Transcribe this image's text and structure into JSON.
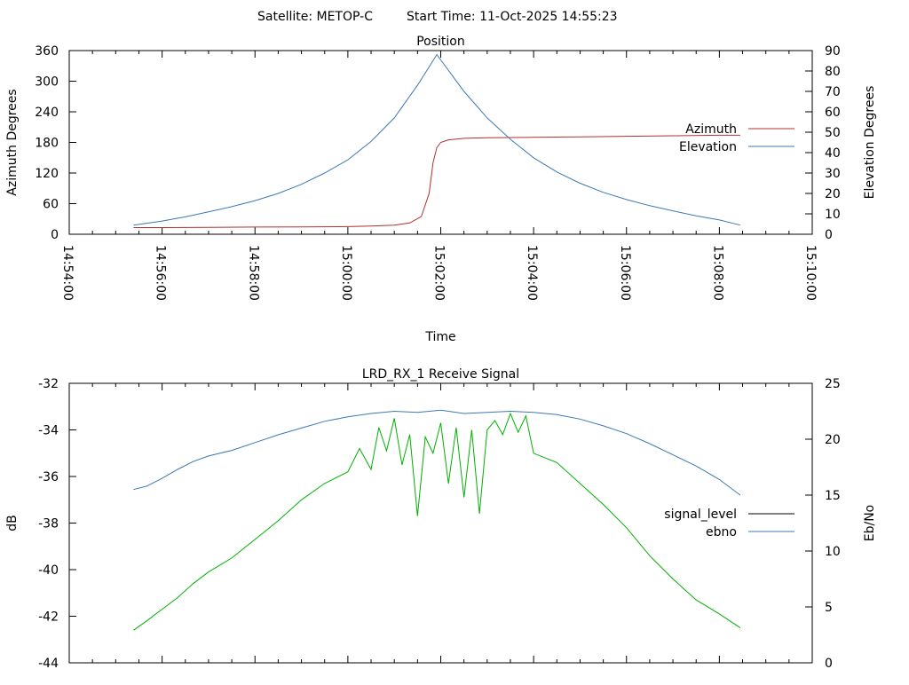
{
  "header": {
    "satellite_label": "Satellite: METOP-C",
    "start_time_label": "Start Time: 11-Oct-2025 14:55:23"
  },
  "chart_data": [
    {
      "type": "line",
      "title": "Position",
      "xlabel": "Time",
      "ylabel": "Azimuth Degrees",
      "y2label": "Elevation Degrees",
      "xlim": [
        "14:54:00",
        "15:10:00"
      ],
      "ylim": [
        0,
        360
      ],
      "y2lim": [
        0,
        90
      ],
      "x_ticks": [
        "14:54:00",
        "14:56:00",
        "14:58:00",
        "15:00:00",
        "15:02:00",
        "15:04:00",
        "15:06:00",
        "15:08:00",
        "15:10:00"
      ],
      "y_ticks": [
        "0",
        "60",
        "120",
        "180",
        "240",
        "300",
        "360"
      ],
      "y2_ticks": [
        "0",
        "10",
        "20",
        "30",
        "40",
        "50",
        "60",
        "70",
        "80",
        "90"
      ],
      "legend_position": "right",
      "series": [
        {
          "name": "Azimuth",
          "axis": "y",
          "color": "#b03030",
          "x": [
            "14:55:23",
            "14:56:00",
            "14:57:00",
            "14:58:00",
            "14:59:00",
            "15:00:00",
            "15:00:30",
            "15:01:00",
            "15:01:20",
            "15:01:35",
            "15:01:45",
            "15:01:50",
            "15:01:55",
            "15:02:00",
            "15:02:10",
            "15:02:30",
            "15:03:00",
            "15:04:00",
            "15:05:00",
            "15:06:00",
            "15:07:00",
            "15:08:00",
            "15:08:27"
          ],
          "values": [
            13,
            13,
            13.5,
            14,
            14.5,
            15,
            16,
            18,
            22,
            35,
            80,
            140,
            170,
            180,
            185,
            188,
            189,
            190,
            191,
            192,
            193,
            194,
            194
          ]
        },
        {
          "name": "Elevation",
          "axis": "y2",
          "color": "#3c78b4",
          "x": [
            "14:55:23",
            "14:56:00",
            "14:56:30",
            "14:57:00",
            "14:57:30",
            "14:58:00",
            "14:58:30",
            "14:59:00",
            "14:59:30",
            "15:00:00",
            "15:00:30",
            "15:01:00",
            "15:01:30",
            "15:01:55",
            "15:02:30",
            "15:03:00",
            "15:03:30",
            "15:04:00",
            "15:04:30",
            "15:05:00",
            "15:05:30",
            "15:06:00",
            "15:06:30",
            "15:07:00",
            "15:07:30",
            "15:08:00",
            "15:08:27"
          ],
          "values": [
            4.5,
            6.5,
            8.5,
            11,
            13.5,
            16.5,
            20,
            24.5,
            30,
            36.5,
            45.5,
            57,
            73,
            88,
            70,
            57,
            46.5,
            37.5,
            30.5,
            25,
            20.5,
            17,
            14,
            11.5,
            9,
            7,
            4.5
          ]
        }
      ]
    },
    {
      "type": "line",
      "title": "LRD_RX_1 Receive Signal",
      "ylabel": "dB",
      "y2label": "Eb/No",
      "ylim": [
        -44,
        -32
      ],
      "y2lim": [
        0,
        25
      ],
      "y_ticks": [
        "-32",
        "-34",
        "-36",
        "-38",
        "-40",
        "-42",
        "-44"
      ],
      "y2_ticks": [
        "0",
        "5",
        "10",
        "15",
        "20",
        "25"
      ],
      "legend_position": "right",
      "series": [
        {
          "name": "signal_level",
          "axis": "y",
          "color": "#000000",
          "x": [],
          "values": []
        },
        {
          "name": "ebno",
          "axis": "y2",
          "color": "#3c78b4",
          "x": [
            "14:55:23",
            "14:55:40",
            "14:56:00",
            "14:56:20",
            "14:56:40",
            "14:57:00",
            "14:57:30",
            "14:58:00",
            "14:58:30",
            "14:59:00",
            "14:59:30",
            "15:00:00",
            "15:00:30",
            "15:01:00",
            "15:01:30",
            "15:02:00",
            "15:02:30",
            "15:03:00",
            "15:03:30",
            "15:04:00",
            "15:04:30",
            "15:05:00",
            "15:05:30",
            "15:06:00",
            "15:06:30",
            "15:07:00",
            "15:07:30",
            "15:08:00",
            "15:08:27"
          ],
          "values": [
            15.5,
            15.8,
            16.5,
            17.3,
            18,
            18.5,
            19,
            19.7,
            20.4,
            21,
            21.6,
            22,
            22.3,
            22.5,
            22.4,
            22.6,
            22.3,
            22.4,
            22.5,
            22.4,
            22.2,
            21.8,
            21.2,
            20.5,
            19.6,
            18.6,
            17.6,
            16.4,
            15
          ]
        },
        {
          "color": "#00b000",
          "axis": "y",
          "x": [
            "14:55:23",
            "14:55:40",
            "14:56:00",
            "14:56:20",
            "14:56:40",
            "14:57:00",
            "14:57:30",
            "14:58:00",
            "14:58:30",
            "14:59:00",
            "14:59:30",
            "15:00:00",
            "15:00:15",
            "15:00:30",
            "15:00:40",
            "15:00:50",
            "15:01:00",
            "15:01:10",
            "15:01:20",
            "15:01:30",
            "15:01:40",
            "15:01:50",
            "15:02:00",
            "15:02:10",
            "15:02:20",
            "15:02:30",
            "15:02:40",
            "15:02:50",
            "15:03:00",
            "15:03:10",
            "15:03:20",
            "15:03:30",
            "15:03:40",
            "15:03:50",
            "15:04:00",
            "15:04:30",
            "15:05:00",
            "15:05:30",
            "15:06:00",
            "15:06:30",
            "15:07:00",
            "15:07:30",
            "15:08:00",
            "15:08:27"
          ],
          "values": [
            -42.6,
            -42.2,
            -41.7,
            -41.2,
            -40.6,
            -40.1,
            -39.5,
            -38.7,
            -37.9,
            -37.0,
            -36.3,
            -35.8,
            -34.8,
            -35.7,
            -33.9,
            -34.9,
            -33.5,
            -35.5,
            -34.2,
            -37.7,
            -34.3,
            -35.0,
            -33.7,
            -36.3,
            -33.9,
            -36.9,
            -34.0,
            -37.6,
            -34.0,
            -33.6,
            -34.2,
            -33.3,
            -34.1,
            -33.4,
            -35.0,
            -35.4,
            -36.3,
            -37.2,
            -38.2,
            -39.4,
            -40.4,
            -41.3,
            -41.9,
            -42.5
          ]
        }
      ]
    }
  ]
}
